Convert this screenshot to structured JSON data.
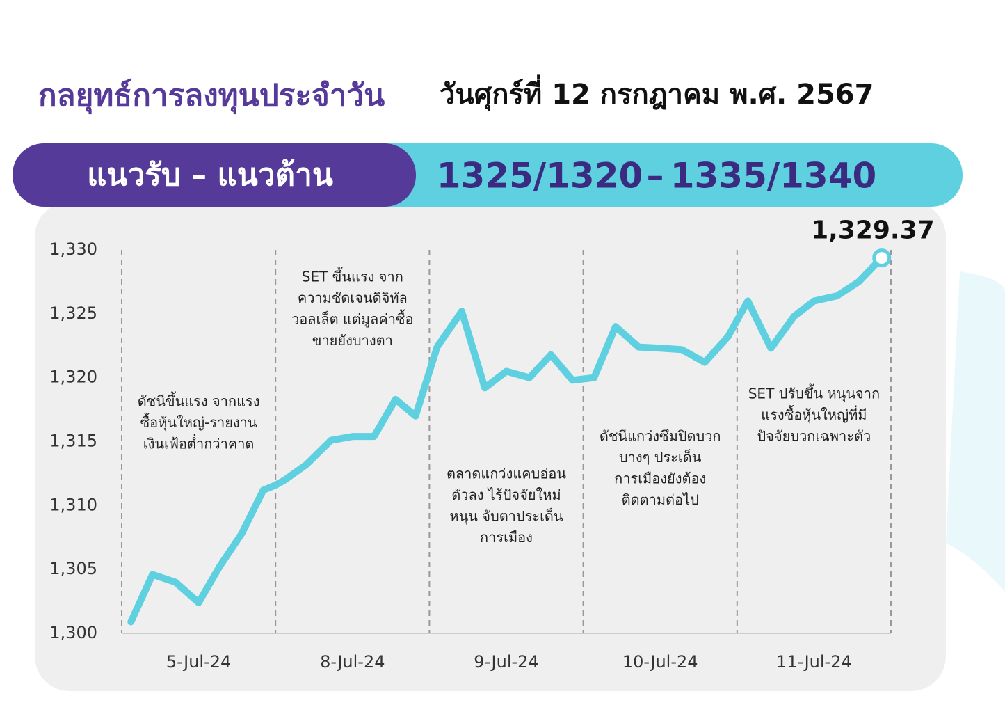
{
  "header": {
    "title": "กลยุทธ์การลงทุนประจำวัน",
    "date": "วันศุกร์ที่ 12 กรกฎาคม พ.ศ. 2567"
  },
  "banner": {
    "label": "แนวรับ – แนวต้าน",
    "support": "1325/1320",
    "separator": "–",
    "resistance": "1335/1340"
  },
  "chart_data": {
    "type": "line",
    "x": [
      0.06,
      0.2,
      0.35,
      0.5,
      0.64,
      0.78,
      0.92,
      1.0,
      1.06,
      1.2,
      1.36,
      1.5,
      1.64,
      1.78,
      1.91,
      2.05,
      2.21,
      2.36,
      2.5,
      2.65,
      2.79,
      2.93,
      3.0,
      3.07,
      3.21,
      3.36,
      3.51,
      3.64,
      3.79,
      3.94,
      4.07,
      4.22,
      4.37,
      4.5,
      4.65,
      4.79,
      4.94
    ],
    "series": [
      {
        "color": "#5fd0e0",
        "values": [
          1300.9,
          1304.6,
          1304.0,
          1302.4,
          1305.3,
          1307.8,
          1311.2,
          1311.6,
          1312.0,
          1313.2,
          1315.1,
          1315.4,
          1315.4,
          1318.3,
          1317.0,
          1322.4,
          1325.2,
          1319.2,
          1320.5,
          1320.0,
          1321.8,
          1319.8,
          1319.9,
          1320.0,
          1324.0,
          1322.4,
          1322.3,
          1322.2,
          1321.2,
          1323.2,
          1326.0,
          1322.3,
          1324.8,
          1326.0,
          1326.4,
          1327.5,
          1329.37
        ],
        "value_labels": [
          null,
          null,
          null,
          null,
          null,
          null,
          null,
          null,
          null,
          null,
          null,
          null,
          null,
          null,
          null,
          null,
          null,
          null,
          null,
          null,
          null,
          null,
          null,
          null,
          null,
          null,
          null,
          null,
          null,
          null,
          null,
          null,
          null,
          null,
          null,
          null,
          "1,329.37"
        ]
      }
    ],
    "xlim": [
      0,
      5
    ],
    "xticks": [
      {
        "value": 0.5,
        "label": "5-Jul-24"
      },
      {
        "value": 1.5,
        "label": "8-Jul-24"
      },
      {
        "value": 2.5,
        "label": "9-Jul-24"
      },
      {
        "value": 3.5,
        "label": "10-Jul-24"
      },
      {
        "value": 4.5,
        "label": "11-Jul-24"
      }
    ],
    "ylim": [
      1300,
      1330
    ],
    "yticks": [
      {
        "value": 1300,
        "label": "1,300"
      },
      {
        "value": 1305,
        "label": "1,305"
      },
      {
        "value": 1310,
        "label": "1,310"
      },
      {
        "value": 1315,
        "label": "1,315"
      },
      {
        "value": 1320,
        "label": "1,320"
      },
      {
        "value": 1325,
        "label": "1,325"
      },
      {
        "value": 1330,
        "label": "1,330"
      }
    ],
    "annotations": [
      [
        "ดัชนีขึ้นแรง จากแรง",
        "ซื้อหุ้นใหญ่-รายงาน",
        "เงินเฟ้อต่ำกว่าคาด"
      ],
      [
        "SET ขึ้นแรง จาก",
        "ความชัดเจนดิจิทัล",
        "วอลเล็ต แต่มูลค่าซื้อ",
        "ขายยังบางตา"
      ],
      [
        "ตลาดแกว่งแคบอ่อน",
        "ตัวลง ไร้ปัจจัยใหม่",
        "หนุน จับตาประเด็น",
        "การเมือง"
      ],
      [
        "ดัชนีแกว่งซึมปิดบวก",
        "บางๆ ประเด็น",
        "การเมืองยังต้อง",
        "ติดตามต่อไป"
      ],
      [
        "SET ปรับขึ้น หนุนจาก",
        "แรงซื้อหุ้นใหญ่ที่มี",
        "ปัจจัยบวกเฉพาะตัว"
      ]
    ]
  }
}
